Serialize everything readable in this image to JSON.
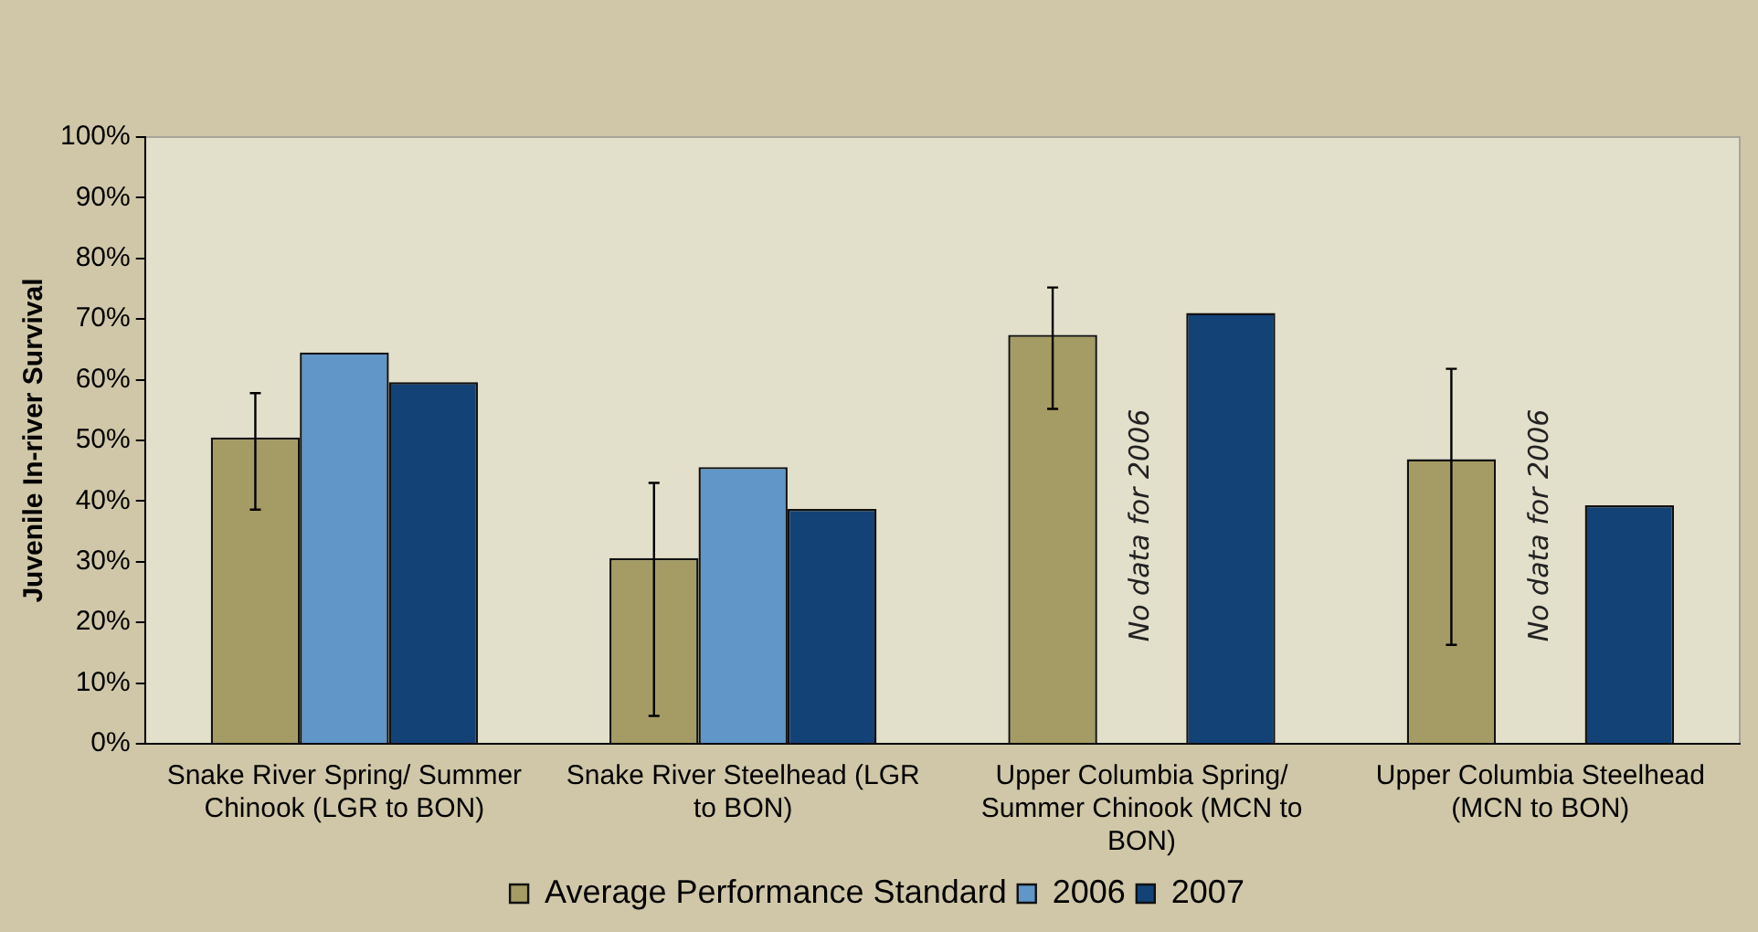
{
  "chart_data": {
    "type": "bar",
    "ylabel": "Juvenile In-river Survival",
    "categories": [
      "Snake River Spring/ Summer Chinook (LGR to BON)",
      "Snake River Steelhead (LGR to BON)",
      "Upper Columbia Spring/ Summer Chinook (MCN to BON)",
      "Upper Columbia Steelhead (MCN to BON)"
    ],
    "series": [
      {
        "name": "Average Performance Standard",
        "color": "#a59b64",
        "values": [
          50.5,
          30.6,
          67.4,
          46.9
        ],
        "errors": [
          [
            38.6,
            57.8
          ],
          [
            4.6,
            43
          ],
          [
            55.2,
            75.2
          ],
          [
            16.3,
            61.8
          ]
        ]
      },
      {
        "name": "2006",
        "color": "#6096c8",
        "values": [
          64.5,
          45.6,
          null,
          null
        ]
      },
      {
        "name": "2007",
        "color": "#134277",
        "values": [
          59.6,
          38.7,
          71,
          39.3
        ]
      }
    ],
    "ylim": [
      0,
      100
    ],
    "yticks": [
      {
        "value": 0,
        "label": "0%"
      },
      {
        "value": 10,
        "label": "10%"
      },
      {
        "value": 20,
        "label": "20%"
      },
      {
        "value": 30,
        "label": "30%"
      },
      {
        "value": 40,
        "label": "40%"
      },
      {
        "value": 50,
        "label": "50%"
      },
      {
        "value": 60,
        "label": "60%"
      },
      {
        "value": 70,
        "label": "70%"
      },
      {
        "value": 80,
        "label": "80%"
      },
      {
        "value": 90,
        "label": "90%"
      },
      {
        "value": 100,
        "label": "100%"
      }
    ],
    "annotations": [
      "No data for 2006",
      "No data for 2006"
    ],
    "grid": false,
    "legend": "bottom"
  }
}
